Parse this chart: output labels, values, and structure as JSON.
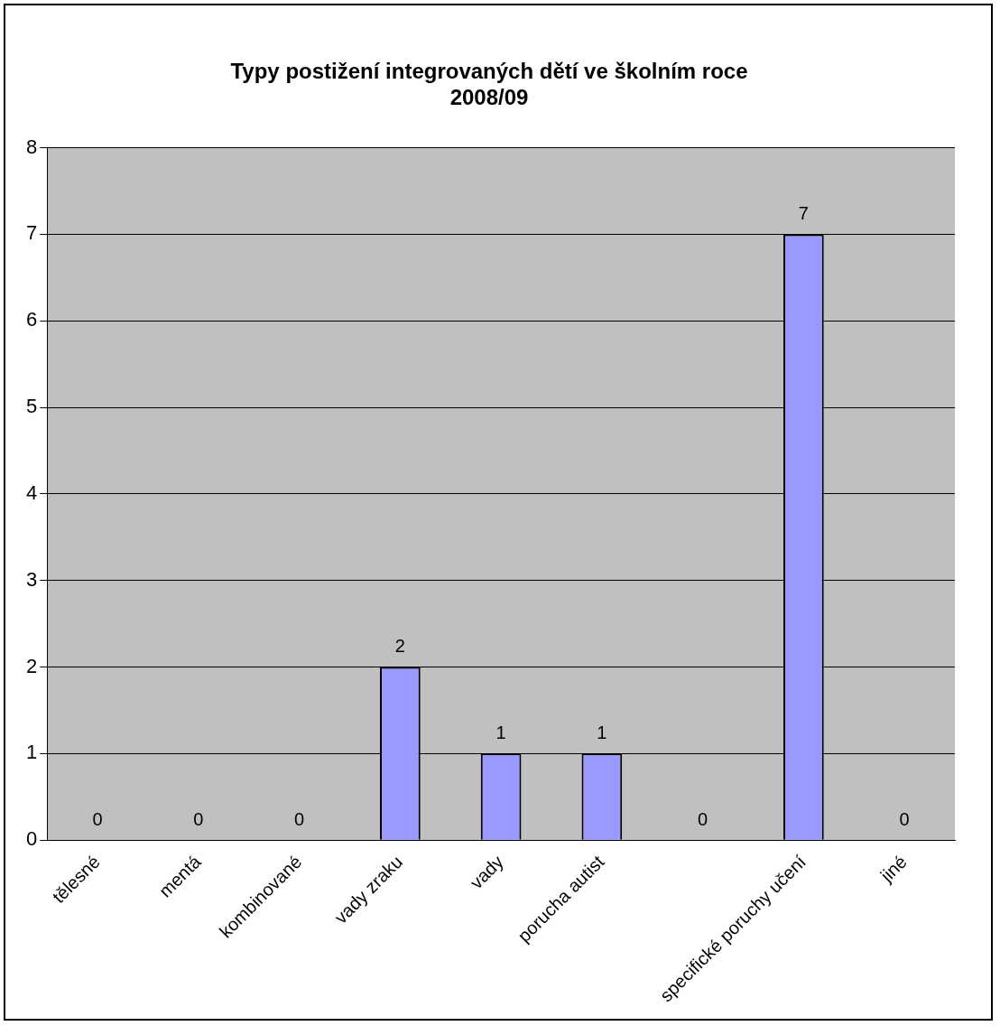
{
  "chart_data": {
    "type": "bar",
    "title": [
      "Typy postižení integrovaných dětí ve školním roce",
      "2008/09"
    ],
    "categories": [
      "tělesné",
      "mentá",
      "kombinované",
      "vady zraku",
      "vady",
      "porucha autist",
      null,
      "specifické poruchy učení",
      "jiné"
    ],
    "values": [
      0,
      0,
      0,
      2,
      1,
      1,
      0,
      7,
      0
    ],
    "color": "#9999ff",
    "ylim": [
      0,
      8
    ],
    "yticks": [
      0,
      1,
      2,
      3,
      4,
      5,
      6,
      7,
      8
    ],
    "grid": "y",
    "data_labels": true,
    "legend": false
  }
}
